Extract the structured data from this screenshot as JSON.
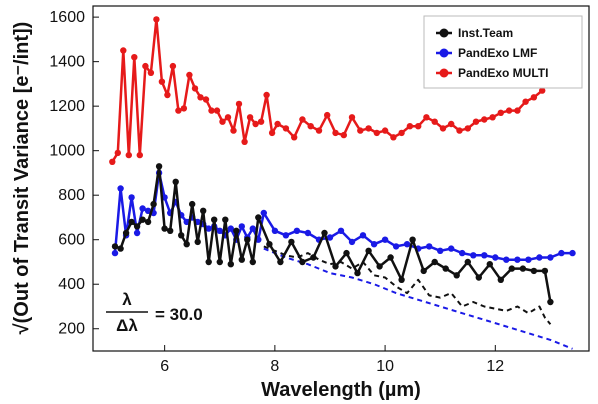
{
  "chart_data": {
    "type": "line",
    "xlabel": "Wavelength (µm)",
    "ylabel": "√(Out of Transit Variance [e⁻/int])",
    "xlim": [
      4.7,
      13.7
    ],
    "ylim": [
      100,
      1650
    ],
    "xticks": [
      6,
      8,
      10,
      12
    ],
    "yticks": [
      200,
      400,
      600,
      800,
      1000,
      1200,
      1400,
      1600
    ],
    "grid": false,
    "legend_placement": "top-right",
    "annotation": {
      "numerator": "λ",
      "denominator": "Δλ",
      "value": "= 30.0"
    },
    "series": [
      {
        "name": "Inst.Team",
        "color": "#111111",
        "style": "solid-markers",
        "x": [
          5.1,
          5.2,
          5.3,
          5.4,
          5.5,
          5.6,
          5.7,
          5.8,
          5.9,
          6.0,
          6.1,
          6.2,
          6.3,
          6.4,
          6.5,
          6.6,
          6.7,
          6.8,
          6.9,
          7.0,
          7.1,
          7.2,
          7.3,
          7.4,
          7.5,
          7.6,
          7.7,
          7.9,
          8.1,
          8.3,
          8.5,
          8.7,
          8.9,
          9.1,
          9.3,
          9.5,
          9.7,
          9.9,
          10.1,
          10.3,
          10.5,
          10.7,
          10.9,
          11.1,
          11.3,
          11.5,
          11.7,
          11.9,
          12.1,
          12.3,
          12.5,
          12.7,
          12.9,
          13.0
        ],
        "y": [
          570,
          560,
          630,
          680,
          660,
          690,
          680,
          760,
          930,
          650,
          640,
          860,
          620,
          580,
          760,
          590,
          730,
          500,
          690,
          500,
          690,
          490,
          640,
          510,
          600,
          500,
          700,
          580,
          500,
          590,
          500,
          520,
          630,
          480,
          540,
          450,
          550,
          480,
          520,
          420,
          600,
          460,
          500,
          470,
          440,
          500,
          430,
          490,
          420,
          470,
          470,
          460,
          460,
          320
        ]
      },
      {
        "name": "PandExo LMF",
        "color": "#1a1ae6",
        "style": "solid-markers",
        "x": [
          5.1,
          5.2,
          5.3,
          5.4,
          5.5,
          5.6,
          5.7,
          5.8,
          5.9,
          6.0,
          6.1,
          6.2,
          6.3,
          6.4,
          6.5,
          6.6,
          6.7,
          6.8,
          6.9,
          7.0,
          7.1,
          7.2,
          7.3,
          7.4,
          7.5,
          7.6,
          7.7,
          7.8,
          8.0,
          8.2,
          8.4,
          8.6,
          8.8,
          9.0,
          9.2,
          9.4,
          9.6,
          9.8,
          10.0,
          10.2,
          10.4,
          10.6,
          10.8,
          11.0,
          11.2,
          11.4,
          11.6,
          11.8,
          12.0,
          12.2,
          12.4,
          12.6,
          12.8,
          13.0,
          13.2,
          13.4
        ],
        "y": [
          540,
          830,
          620,
          790,
          630,
          740,
          730,
          720,
          900,
          790,
          720,
          770,
          710,
          680,
          700,
          680,
          670,
          650,
          660,
          640,
          620,
          650,
          600,
          660,
          610,
          650,
          600,
          720,
          640,
          620,
          640,
          630,
          600,
          610,
          640,
          590,
          620,
          580,
          600,
          570,
          580,
          560,
          570,
          550,
          560,
          540,
          530,
          530,
          520,
          510,
          510,
          510,
          520,
          520,
          540,
          540
        ]
      },
      {
        "name": "PandExo MULTI",
        "color": "#e61a1a",
        "style": "solid-markers",
        "x": [
          5.05,
          5.15,
          5.25,
          5.35,
          5.45,
          5.55,
          5.65,
          5.75,
          5.85,
          5.95,
          6.05,
          6.15,
          6.25,
          6.35,
          6.45,
          6.55,
          6.65,
          6.75,
          6.85,
          6.95,
          7.05,
          7.15,
          7.25,
          7.35,
          7.45,
          7.55,
          7.65,
          7.75,
          7.85,
          7.95,
          8.05,
          8.2,
          8.35,
          8.5,
          8.65,
          8.8,
          8.95,
          9.1,
          9.25,
          9.4,
          9.55,
          9.7,
          9.85,
          10.0,
          10.15,
          10.3,
          10.45,
          10.6,
          10.75,
          10.9,
          11.05,
          11.2,
          11.35,
          11.5,
          11.65,
          11.8,
          11.95,
          12.1,
          12.25,
          12.4,
          12.55,
          12.7,
          12.85
        ],
        "y": [
          950,
          990,
          1450,
          980,
          1420,
          980,
          1380,
          1350,
          1590,
          1310,
          1250,
          1380,
          1180,
          1190,
          1340,
          1280,
          1240,
          1230,
          1180,
          1180,
          1130,
          1150,
          1090,
          1210,
          1040,
          1150,
          1120,
          1130,
          1250,
          1080,
          1120,
          1100,
          1060,
          1140,
          1110,
          1090,
          1160,
          1080,
          1070,
          1150,
          1090,
          1100,
          1080,
          1090,
          1060,
          1080,
          1110,
          1110,
          1150,
          1130,
          1100,
          1120,
          1090,
          1100,
          1130,
          1140,
          1150,
          1170,
          1180,
          1180,
          1220,
          1240,
          1270
        ]
      },
      {
        "name": "",
        "color": "#111111",
        "style": "dashed",
        "x": [
          7.8,
          8.0,
          8.2,
          8.4,
          8.6,
          8.8,
          9.0,
          9.2,
          9.4,
          9.6,
          9.8,
          10.0,
          10.2,
          10.4,
          10.6,
          10.8,
          11.0,
          11.2,
          11.4,
          11.6,
          11.8,
          12.0,
          12.2,
          12.4,
          12.6,
          12.8,
          12.9,
          13.0
        ],
        "y": [
          570,
          550,
          530,
          520,
          540,
          510,
          490,
          500,
          470,
          500,
          440,
          430,
          390,
          360,
          420,
          350,
          340,
          360,
          300,
          320,
          300,
          290,
          280,
          300,
          270,
          300,
          250,
          220
        ]
      },
      {
        "name": "",
        "color": "#1a1ae6",
        "style": "dashed",
        "x": [
          7.8,
          8.2,
          8.6,
          9.0,
          9.4,
          9.8,
          10.2,
          10.6,
          11.0,
          11.4,
          11.8,
          12.2,
          12.6,
          13.0,
          13.4
        ],
        "y": [
          560,
          520,
          490,
          450,
          430,
          400,
          360,
          330,
          300,
          270,
          240,
          210,
          180,
          150,
          110
        ]
      }
    ]
  }
}
